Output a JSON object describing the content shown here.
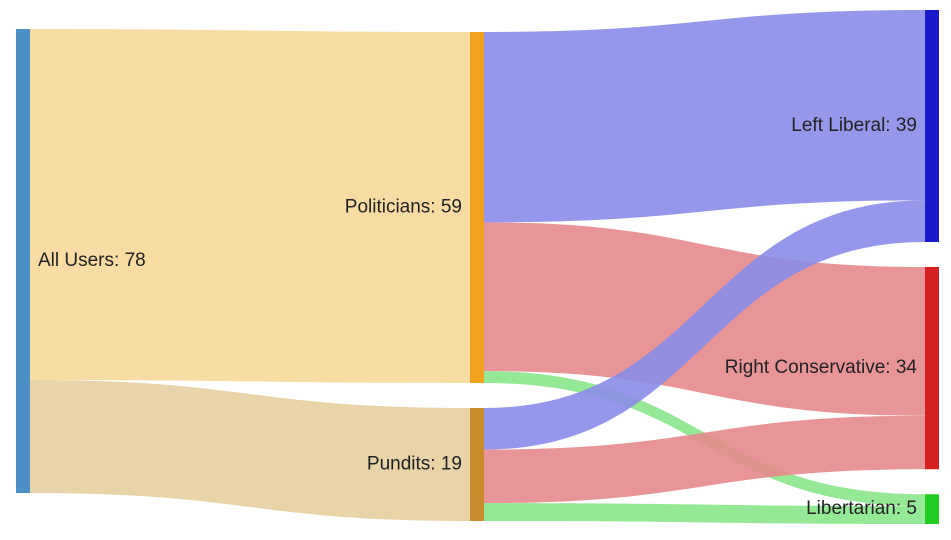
{
  "chart_data": {
    "type": "sankey",
    "nodes": [
      {
        "id": "all",
        "name": "All Users",
        "value": 78,
        "column": 0,
        "color": "#4A90C4"
      },
      {
        "id": "pol",
        "name": "Politicians",
        "value": 59,
        "column": 1,
        "color": "#F0A21F"
      },
      {
        "id": "pun",
        "name": "Pundits",
        "value": 19,
        "column": 1,
        "color": "#C98B2B"
      },
      {
        "id": "left",
        "name": "Left Liberal",
        "value": 39,
        "column": 2,
        "color": "#1A1ACC"
      },
      {
        "id": "right",
        "name": "Right Conservative",
        "value": 34,
        "column": 2,
        "color": "#D42020"
      },
      {
        "id": "lib",
        "name": "Libertarian",
        "value": 5,
        "column": 2,
        "color": "#22CC22"
      }
    ],
    "links": [
      {
        "source": "all",
        "target": "pol",
        "value": 59,
        "color": "#F7D899"
      },
      {
        "source": "all",
        "target": "pun",
        "value": 19,
        "color": "#E5CF9E"
      },
      {
        "source": "pol",
        "target": "left",
        "value": 32,
        "color": "#8A8CE8"
      },
      {
        "source": "pol",
        "target": "right",
        "value": 25,
        "color": "#E68A8C"
      },
      {
        "source": "pol",
        "target": "lib",
        "value": 2,
        "color": "#8AE68A"
      },
      {
        "source": "pun",
        "target": "left",
        "value": 7,
        "color": "#8A8CE8"
      },
      {
        "source": "pun",
        "target": "right",
        "value": 9,
        "color": "#E68A8C"
      },
      {
        "source": "pun",
        "target": "lib",
        "value": 3,
        "color": "#8AE68A"
      }
    ]
  }
}
